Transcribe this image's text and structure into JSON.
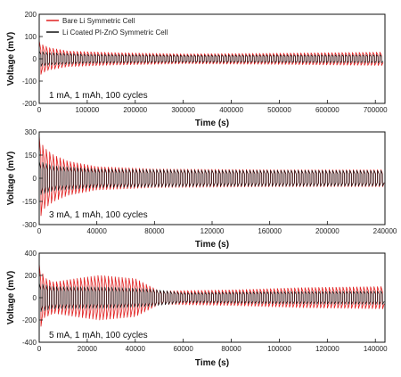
{
  "colors": {
    "bare": "#e02020",
    "coated": "#111111",
    "axis": "#111111"
  },
  "legend": {
    "bare_label": "Bare Li Symmetric Cell",
    "coated_label": "Li Coated PI-ZnO Symmetric Cell"
  },
  "chart_data": [
    {
      "type": "line",
      "xlabel": "Time (s)",
      "ylabel": "Voltage (mV)",
      "annotation": "1 mA, 1 mAh, 100 cycles",
      "xlim": [
        0,
        720000
      ],
      "ylim": [
        -200,
        200
      ],
      "xticks": [
        0,
        100000,
        200000,
        300000,
        400000,
        500000,
        600000,
        700000
      ],
      "yticks": [
        -200,
        -100,
        0,
        100,
        200
      ],
      "cycles": 100,
      "series": [
        {
          "name": "Bare Li Symmetric Cell",
          "key": "bare",
          "envelope": {
            "t": [
              0,
              5000,
              20000,
              60000,
              150000,
              300000,
              500000,
              720000
            ],
            "amp": [
              80,
              65,
              50,
              35,
              28,
              22,
              25,
              30
            ]
          }
        },
        {
          "name": "Li Coated PI-ZnO Symmetric Cell",
          "key": "coated",
          "envelope": {
            "t": [
              0,
              20000,
              100000,
              300000,
              720000
            ],
            "amp": [
              35,
              28,
              20,
              16,
              18
            ]
          }
        }
      ]
    },
    {
      "type": "line",
      "xlabel": "Time (s)",
      "ylabel": "Voltage (mV)",
      "annotation": "3 mA, 1 mAh, 100 cycles",
      "xlim": [
        0,
        240000
      ],
      "ylim": [
        -300,
        300
      ],
      "xticks": [
        0,
        40000,
        80000,
        120000,
        160000,
        200000,
        240000
      ],
      "yticks": [
        -300,
        -150,
        0,
        150,
        300
      ],
      "cycles": 100,
      "series": [
        {
          "name": "Bare Li Symmetric Cell",
          "key": "bare",
          "envelope": {
            "t": [
              0,
              3000,
              10000,
              20000,
              40000,
              80000,
              160000,
              240000
            ],
            "amp": [
              270,
              200,
              150,
              110,
              75,
              60,
              55,
              55
            ]
          }
        },
        {
          "name": "Li Coated PI-ZnO Symmetric Cell",
          "key": "coated",
          "envelope": {
            "t": [
              0,
              10000,
              40000,
              120000,
              240000
            ],
            "amp": [
              110,
              80,
              60,
              52,
              50
            ]
          }
        }
      ]
    },
    {
      "type": "line",
      "xlabel": "Time (s)",
      "ylabel": "Voltage (mV)",
      "annotation": "5 mA, 1 mAh, 100 cycles",
      "xlim": [
        0,
        144000
      ],
      "ylim": [
        -400,
        400
      ],
      "xticks": [
        0,
        20000,
        40000,
        60000,
        80000,
        100000,
        120000,
        140000
      ],
      "yticks": [
        -400,
        -200,
        0,
        200,
        400
      ],
      "cycles": 100,
      "series": [
        {
          "name": "Bare Li Symmetric Cell",
          "key": "bare",
          "envelope": {
            "t": [
              0,
              2000,
              6000,
              15000,
              25000,
              40000,
              50000,
              80000,
              110000,
              144000
            ],
            "amp": [
              300,
              180,
              140,
              170,
              200,
              170,
              60,
              70,
              90,
              100
            ]
          }
        },
        {
          "name": "Li Coated PI-ZnO Symmetric Cell",
          "key": "coated",
          "envelope": {
            "t": [
              0,
              5000,
              30000,
              45000,
              60000,
              100000,
              144000
            ],
            "amp": [
              130,
              100,
              95,
              80,
              45,
              55,
              60
            ]
          }
        }
      ]
    }
  ]
}
